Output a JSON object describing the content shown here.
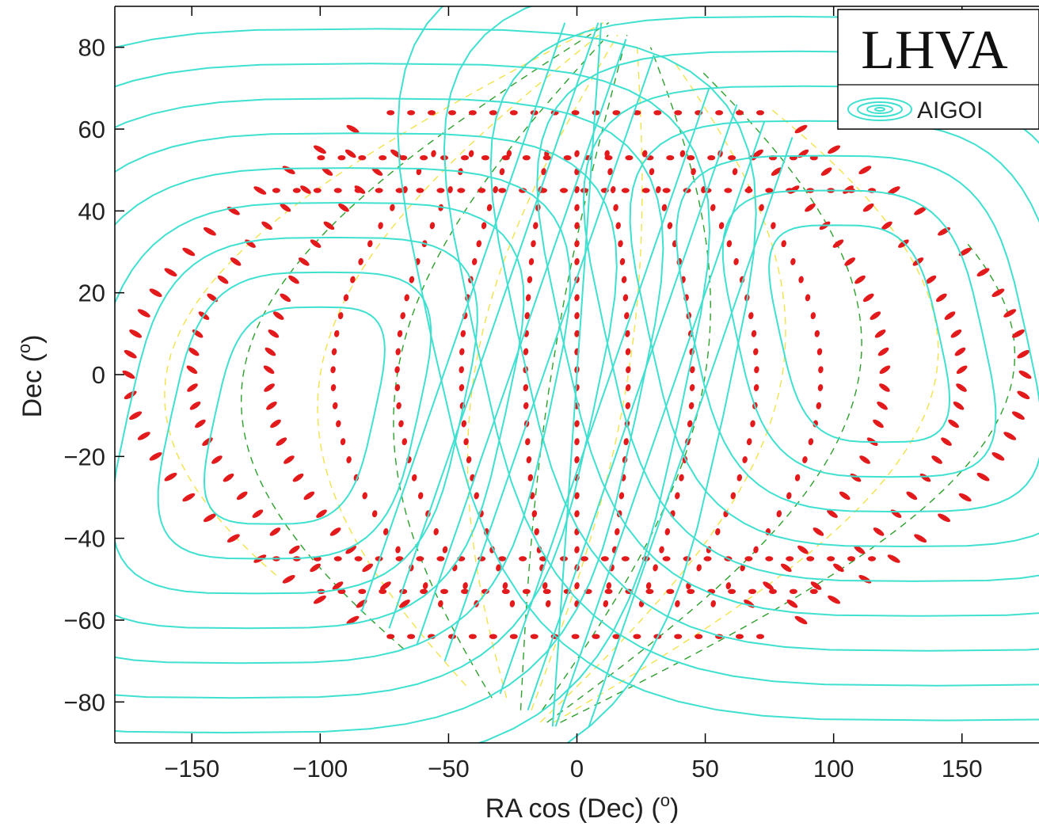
{
  "chart_data": {
    "type": "contour",
    "title": "",
    "xlabel": "RA cos (Dec) (",
    "xlabel_sup": "o",
    "xlabel_end": ")",
    "ylabel": "Dec (",
    "ylabel_sup": "o",
    "ylabel_end": ")",
    "xlim": [
      -180,
      180
    ],
    "ylim": [
      -90,
      90
    ],
    "xticks": [
      -150,
      -100,
      -50,
      0,
      50,
      100,
      150
    ],
    "xtick_labels": [
      "−150",
      "−100",
      "−50",
      "0",
      "50",
      "100",
      "150"
    ],
    "yticks": [
      80,
      60,
      40,
      20,
      0,
      -20,
      -40,
      -60,
      -80
    ],
    "ytick_labels": [
      "80",
      "60",
      "40",
      "20",
      "0",
      "−20",
      "−40",
      "−60",
      "−80"
    ],
    "grid": false,
    "legend": {
      "placement": "top-right",
      "title": "LHVA",
      "entries": [
        {
          "label": "AIGOI",
          "color": "#40e0d0"
        }
      ]
    },
    "contour_centers": [
      {
        "x": -110,
        "y": -10
      },
      {
        "x": 110,
        "y": 10
      }
    ],
    "colors": {
      "contour": "#40e0d0",
      "dots": "#e31a1c",
      "green_dashed": "#2ca02c",
      "yellow_dashed": "#f2e24a",
      "axes": "#000000"
    }
  }
}
